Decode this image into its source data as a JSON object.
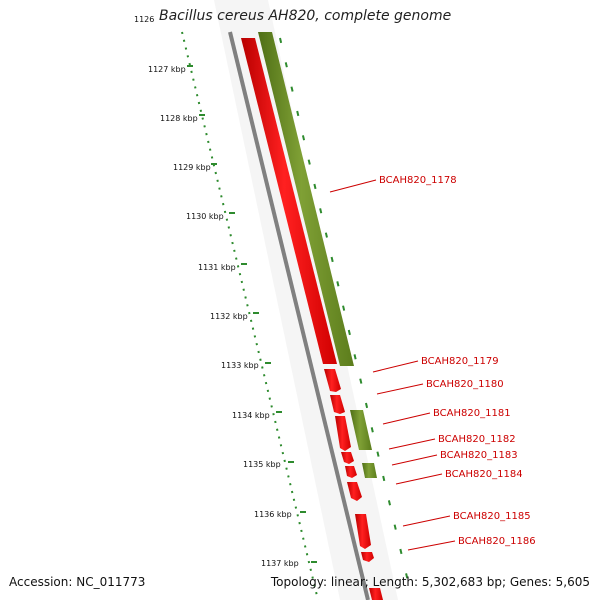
{
  "viewer": {
    "title": "Bacillus cereus AH820, complete genome",
    "accession": "Accession: NC_011773",
    "summary": "Topology: linear; Length: 5,302,683 bp; Genes: 5,605"
  },
  "ruler": {
    "ticks": [
      "1126",
      "1127 kbp",
      "1128 kbp",
      "1129 kbp",
      "1130 kbp",
      "1131 kbp",
      "1132 kbp",
      "1133 kbp",
      "1134 kbp",
      "1135 kbp",
      "1136 kbp",
      "1137 kbp"
    ]
  },
  "genes": [
    {
      "label": "BCAH820_1178",
      "strand": "forward"
    },
    {
      "label": "BCAH820_1179",
      "strand": "reverse"
    },
    {
      "label": "BCAH820_1180",
      "strand": "reverse"
    },
    {
      "label": "BCAH820_1181",
      "strand": "reverse"
    },
    {
      "label": "BCAH820_1182",
      "strand": "reverse"
    },
    {
      "label": "BCAH820_1183",
      "strand": "reverse"
    },
    {
      "label": "BCAH820_1184",
      "strand": "reverse"
    },
    {
      "label": "BCAH820_1185",
      "strand": "reverse"
    },
    {
      "label": "BCAH820_1186",
      "strand": "reverse"
    }
  ],
  "colors": {
    "reverse_gene": "#ff0000",
    "forward_gene": "#6b8e23",
    "backbone": "#808080",
    "ruler": "#2e8b2e",
    "label": "#cc0000"
  }
}
